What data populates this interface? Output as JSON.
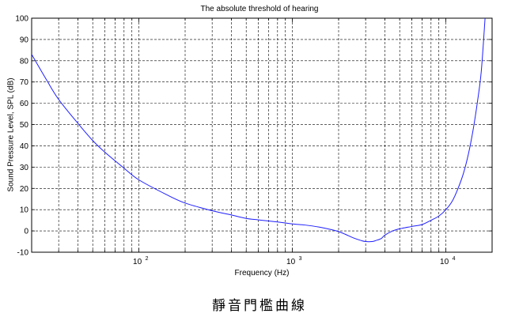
{
  "caption": "靜音門檻曲線",
  "chart_data": {
    "type": "line",
    "title": "The absolute threshold of hearing",
    "xlabel": "Frequency (Hz)",
    "ylabel": "Sound Pressure Level, SPL (dB)",
    "xscale": "log",
    "xlim": [
      20,
      20000
    ],
    "ylim": [
      -10,
      100
    ],
    "yticks": [
      -10,
      0,
      10,
      20,
      30,
      40,
      50,
      60,
      70,
      80,
      90,
      100
    ],
    "xticks": [
      {
        "value": 100,
        "base": "10",
        "exp": "2"
      },
      {
        "value": 1000,
        "base": "10",
        "exp": "3"
      },
      {
        "value": 10000,
        "base": "10",
        "exp": "4"
      }
    ],
    "grid": true,
    "line_color": "#1f1fff",
    "series": [
      {
        "x": [
          20,
          25,
          30,
          40,
          50,
          60,
          80,
          100,
          150,
          200,
          300,
          400,
          500,
          600,
          800,
          1000,
          1200,
          1500,
          1800,
          2000,
          2200,
          2500,
          2800,
          3000,
          3300,
          3500,
          3800,
          4000,
          4500,
          5000,
          6000,
          7000,
          8000,
          9000,
          10000,
          11000,
          12000,
          13000,
          14000,
          15000,
          16000,
          17000,
          18000
        ],
        "y": [
          83,
          71,
          61.8,
          50.6,
          42.5,
          37,
          29.5,
          24,
          17.2,
          13.1,
          9.5,
          7.5,
          5.9,
          5.2,
          4.2,
          3.3,
          2.8,
          1.8,
          0.6,
          -0.3,
          -1.5,
          -3.3,
          -4.5,
          -5,
          -5,
          -4.5,
          -3.5,
          -2,
          0,
          1,
          2.1,
          3,
          5,
          7,
          10,
          14,
          20,
          27,
          36,
          47,
          60,
          75,
          100
        ]
      }
    ]
  }
}
